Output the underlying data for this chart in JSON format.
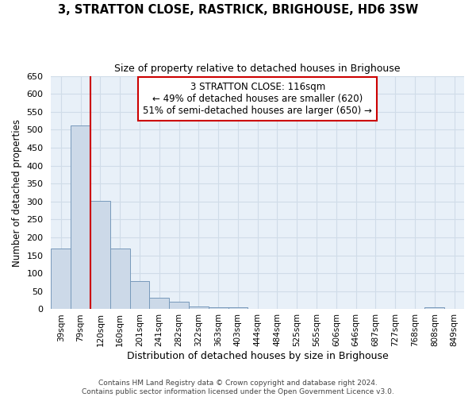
{
  "title": "3, STRATTON CLOSE, RASTRICK, BRIGHOUSE, HD6 3SW",
  "subtitle": "Size of property relative to detached houses in Brighouse",
  "xlabel": "Distribution of detached houses by size in Brighouse",
  "ylabel": "Number of detached properties",
  "bin_labels": [
    "39sqm",
    "79sqm",
    "120sqm",
    "160sqm",
    "201sqm",
    "241sqm",
    "282sqm",
    "322sqm",
    "363sqm",
    "403sqm",
    "444sqm",
    "484sqm",
    "525sqm",
    "565sqm",
    "606sqm",
    "646sqm",
    "687sqm",
    "727sqm",
    "768sqm",
    "808sqm",
    "849sqm"
  ],
  "bar_values": [
    168,
    512,
    302,
    168,
    78,
    32,
    20,
    7,
    5,
    5,
    0,
    0,
    0,
    0,
    0,
    0,
    0,
    0,
    0,
    5,
    0
  ],
  "bar_color": "#ccd9e8",
  "bar_edge_color": "#7799bb",
  "red_line_color": "#cc0000",
  "red_line_bar_index": 2,
  "annotation_text": "3 STRATTON CLOSE: 116sqm\n← 49% of detached houses are smaller (620)\n51% of semi-detached houses are larger (650) →",
  "annotation_box_color": "#ffffff",
  "annotation_box_edge_color": "#cc0000",
  "ylim": [
    0,
    650
  ],
  "yticks": [
    0,
    50,
    100,
    150,
    200,
    250,
    300,
    350,
    400,
    450,
    500,
    550,
    600,
    650
  ],
  "grid_color": "#d0dce8",
  "background_color": "#e8f0f8",
  "footer_line1": "Contains HM Land Registry data © Crown copyright and database right 2024.",
  "footer_line2": "Contains public sector information licensed under the Open Government Licence v3.0."
}
